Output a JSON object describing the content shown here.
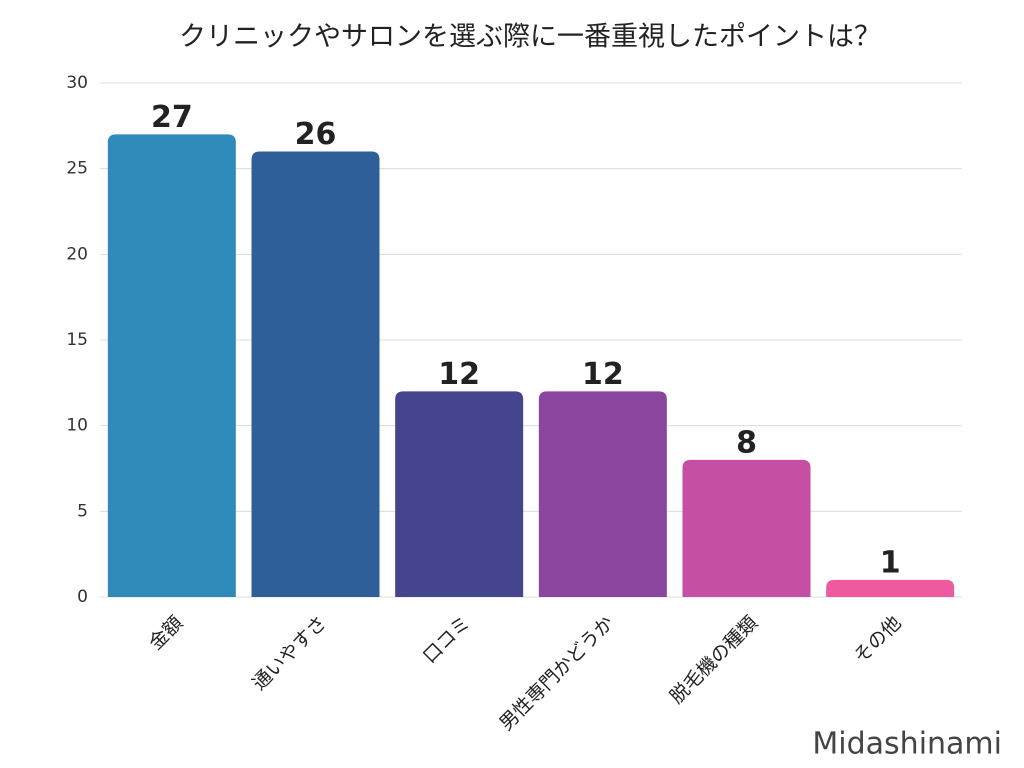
{
  "chart_data": {
    "type": "bar",
    "title": "クリニックやサロンを選ぶ際に一番重視したポイントは？",
    "categories": [
      "金額",
      "通いやすさ",
      "口コミ",
      "男性専門かどうか",
      "脱毛機の種類",
      "その他"
    ],
    "values": [
      27,
      26,
      12,
      12,
      8,
      1
    ],
    "colors": [
      "#2e8bba",
      "#2e5f99",
      "#45448f",
      "#8a469e",
      "#c44fa3",
      "#ef5a9e"
    ],
    "ylim": [
      0,
      30
    ],
    "yticks": [
      0,
      5,
      10,
      15,
      20,
      25,
      30
    ],
    "grid": true,
    "watermark": "Midashinami"
  }
}
